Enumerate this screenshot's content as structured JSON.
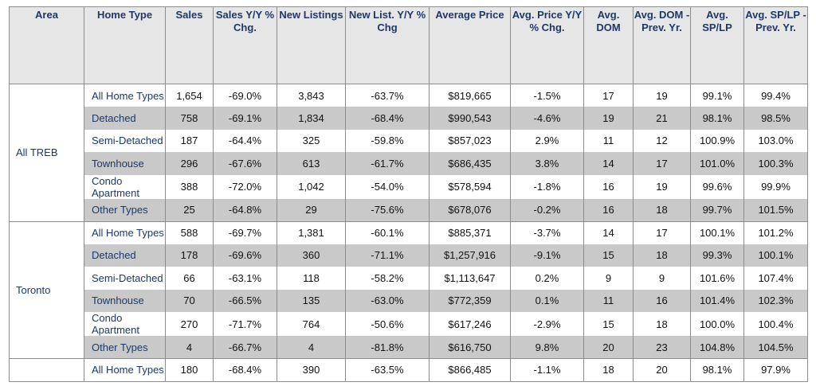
{
  "headers": [
    "Area",
    "Home Type",
    "Sales",
    "Sales Y/Y % Chg.",
    "New Listings",
    "New List. Y/Y % Chg",
    "Average Price",
    "Avg. Price Y/Y % Chg.",
    "Avg. DOM",
    "Avg. DOM - Prev. Yr.",
    "Avg. SP/LP",
    "Avg. SP/LP - Prev. Yr."
  ],
  "groups": [
    {
      "area": "All TREB",
      "rows": [
        {
          "type": "All Home Types",
          "values": [
            "1,654",
            "-69.0%",
            "3,843",
            "-63.7%",
            "$819,665",
            "-1.5%",
            "17",
            "19",
            "99.1%",
            "99.4%"
          ]
        },
        {
          "type": "Detached",
          "values": [
            "758",
            "-69.1%",
            "1,834",
            "-68.4%",
            "$990,543",
            "-4.6%",
            "19",
            "21",
            "98.1%",
            "98.5%"
          ]
        },
        {
          "type": "Semi-Detached",
          "values": [
            "187",
            "-64.4%",
            "325",
            "-59.8%",
            "$857,023",
            "2.9%",
            "11",
            "12",
            "100.9%",
            "103.0%"
          ]
        },
        {
          "type": "Townhouse",
          "values": [
            "296",
            "-67.6%",
            "613",
            "-61.7%",
            "$686,435",
            "3.8%",
            "14",
            "17",
            "101.0%",
            "100.3%"
          ]
        },
        {
          "type": "Condo Apartment",
          "values": [
            "388",
            "-72.0%",
            "1,042",
            "-54.0%",
            "$578,594",
            "-1.8%",
            "16",
            "19",
            "99.6%",
            "99.9%"
          ]
        },
        {
          "type": "Other Types",
          "values": [
            "25",
            "-64.8%",
            "29",
            "-75.6%",
            "$678,076",
            "-0.2%",
            "16",
            "18",
            "99.7%",
            "101.5%"
          ]
        }
      ]
    },
    {
      "area": "Toronto",
      "rows": [
        {
          "type": "All Home Types",
          "values": [
            "588",
            "-69.7%",
            "1,381",
            "-60.1%",
            "$885,371",
            "-3.7%",
            "14",
            "17",
            "100.1%",
            "101.2%"
          ]
        },
        {
          "type": "Detached",
          "values": [
            "178",
            "-69.6%",
            "360",
            "-71.1%",
            "$1,257,916",
            "-9.1%",
            "15",
            "18",
            "99.3%",
            "100.1%"
          ]
        },
        {
          "type": "Semi-Detached",
          "values": [
            "66",
            "-63.1%",
            "118",
            "-58.2%",
            "$1,113,647",
            "0.2%",
            "9",
            "9",
            "101.6%",
            "107.4%"
          ]
        },
        {
          "type": "Townhouse",
          "values": [
            "70",
            "-66.5%",
            "135",
            "-63.0%",
            "$772,359",
            "0.1%",
            "11",
            "16",
            "101.4%",
            "102.3%"
          ]
        },
        {
          "type": "Condo Apartment",
          "values": [
            "270",
            "-71.7%",
            "764",
            "-50.6%",
            "$617,246",
            "-2.9%",
            "15",
            "18",
            "100.0%",
            "100.4%"
          ]
        },
        {
          "type": "Other Types",
          "values": [
            "4",
            "-66.7%",
            "4",
            "-81.8%",
            "$616,750",
            "9.8%",
            "20",
            "23",
            "104.8%",
            "104.5%"
          ]
        }
      ]
    },
    {
      "area": "",
      "rows": [
        {
          "type": "All Home Types",
          "values": [
            "180",
            "-68.4%",
            "390",
            "-63.5%",
            "$866,485",
            "-1.1%",
            "18",
            "20",
            "98.1%",
            "97.9%"
          ]
        }
      ]
    }
  ]
}
